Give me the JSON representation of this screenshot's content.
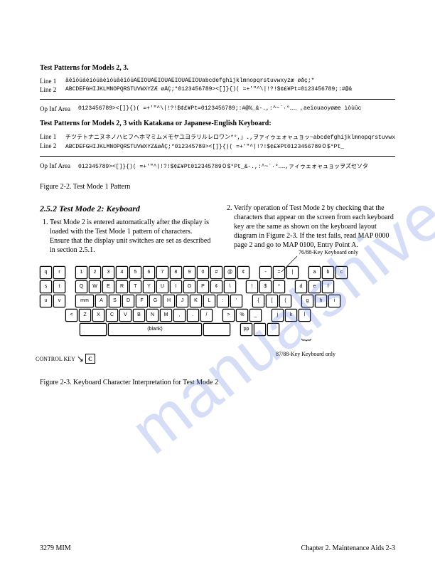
{
  "heading1": "Test Patterns for Models 2, 3.",
  "pat1": {
    "line1_label": "Line 1",
    "line1": "āēīōūáéíóúàèìòùâêîôûÄËÏÖÜÁÉÍÓÚÀÈÌÒÙÂÊÎÔÛabcdefghijklmnopqrstuvwxyzæ øåç;*",
    "line2_label": "Line 2",
    "line2": "ABCDEFGHIJKLMNOPQRSTUVWXYZÆ øÅÇ;*0123456789><[]}{)( =+'\"^\\|!?!$¢£¥Pt=0123456789;:#@&"
  },
  "opinf1_label": "Op Inf Area",
  "opinf1": "0123456789><[]}{)( =+'\"^\\|!?!$¢£¥Pt=0123456789;:#@%_&-.,:^~`·°…… ,aeiouaoyøæe ìòùûc",
  "heading2": "Test Patterns for Models 2, 3 with Katakana or Japanese-English Keyboard:",
  "pat2": {
    "line1_label": "Line 1",
    "line1": "チツテトナニヌネノハヒフヘホマミムメモヤユヨラリルレロワン*°,」.,ヲァィゥェォャュョッ~abcdefghijklmnopqrstuvwxyzæøåç;*",
    "line2_label": "Line 2",
    "line2": "ABCDEFGHIJKLMNOPQRSTUVWXYZ&øÅÇ;*012345789><[]}{)( =+'\"^|!?!$¢£¥Pt0123456789０$°Pt_"
  },
  "opinf2_label": "Op Inf Area",
  "opinf2": "012345789><[]}{)( =+'\"^|!?!$¢£¥Pt012345789０$°Pt_&-.,:^~`·°……,ァィゥェォャュョッヲズセソタ",
  "figcap1": "Figure 2-2.   Test Mode 1 Pattern",
  "sechead": "2.5.2  Test Mode 2: Keyboard",
  "col1_item1": "Test Mode 2 is entered automatically after the display is loaded with the Test Mode 1 pattern of characters. Ensure that the display unit switches are set as described in section 2.5.1.",
  "col2_item2": "Verify operation of Test Mode 2 by checking that the characters that appear on the screen from each keyboard key are the same as shown on the keyboard layout diagram in Figure 2-3. If the test fails, read MAP 0000 page 2 and go to MAP 0100, Entry Point A.",
  "kb": {
    "label_7688": "76/88-Key Keyboard only",
    "label_8788": "87/88-Key Keyboard only",
    "ctrl_label": "CONTROL KEY",
    "ctrl_key": "C",
    "blank": "(blank)",
    "row1": [
      "q",
      "r",
      " ",
      "1",
      "2",
      "3",
      "4",
      "5",
      "6",
      "7",
      "8",
      "9",
      "0",
      "#",
      "@",
      "¢",
      " ",
      "-",
      "=",
      "|",
      " ",
      "a",
      "b",
      "c"
    ],
    "row2": [
      "s",
      "t",
      " ",
      "Q",
      "W",
      "E",
      "R",
      "T",
      "Y",
      "U",
      "I",
      "O",
      "P",
      "¢",
      "\\",
      " ",
      "!",
      "$",
      "*",
      " ",
      "d",
      "e",
      "f"
    ],
    "row3": [
      "u",
      "v",
      " ",
      "mm",
      "A",
      "S",
      "D",
      "F",
      "G",
      "H",
      "J",
      "K",
      "L",
      ":",
      "'",
      " ",
      "{",
      "[",
      "(",
      " ",
      "g",
      "h",
      "i"
    ],
    "row4": [
      " ",
      " ",
      " ",
      "<",
      "Z",
      "X",
      "C",
      "V",
      "B",
      "N",
      "M",
      ",",
      ".",
      "/",
      " ",
      ">",
      "%",
      "_",
      " ",
      "j",
      "k",
      "l"
    ],
    "row5_pp": "pp"
  },
  "figcap2": "Figure 2-3.   Keyboard Character Interpretation for Test Mode 2",
  "footer_left": "3279 MIM",
  "footer_right": "Chapter 2. Maintenance Aids    2-3",
  "watermark": "manualshive.com"
}
